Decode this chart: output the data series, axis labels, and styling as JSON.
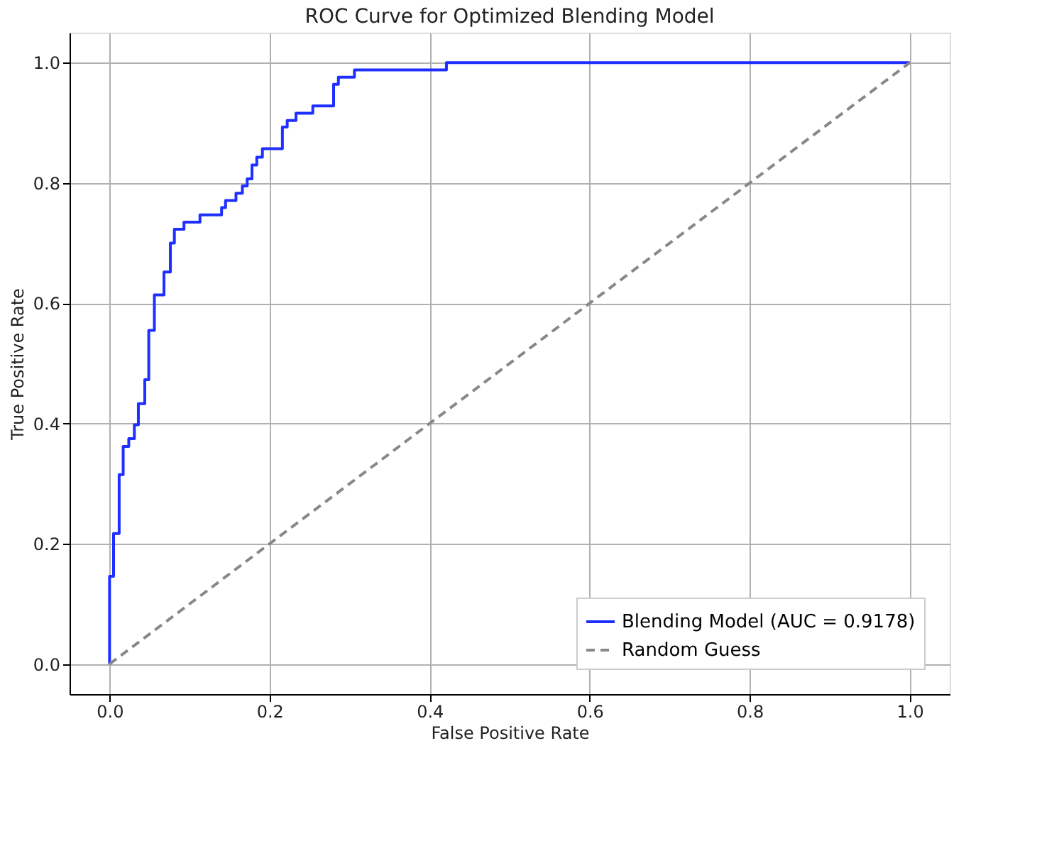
{
  "chart_data": {
    "type": "line",
    "title": "ROC Curve for Optimized Blending Model",
    "xlabel": "False Positive Rate",
    "ylabel": "True Positive Rate",
    "xlim": [
      -0.05,
      1.05
    ],
    "ylim": [
      -0.05,
      1.05
    ],
    "xticks": [
      {
        "value": 0,
        "label": "0.0"
      },
      0.2,
      0.4,
      0.6,
      0.8,
      {
        "value": 1,
        "label": "1.0"
      }
    ],
    "yticks": [
      {
        "value": 0,
        "label": "0.0"
      },
      0.2,
      0.4,
      0.6,
      0.8,
      {
        "value": 1,
        "label": "1.0"
      }
    ],
    "grid": true,
    "legend": "bottom right",
    "series": [
      {
        "name": "Blending Model (AUC = 0.9178)",
        "type": "step",
        "color": "#1f2fff",
        "line_style": "solid",
        "x": [
          0,
          0,
          0.005,
          0.012,
          0.017,
          0.024,
          0.031,
          0.036,
          0.044,
          0.049,
          0.056,
          0.068,
          0.076,
          0.081,
          0.093,
          0.113,
          0.14,
          0.145,
          0.158,
          0.166,
          0.172,
          0.178,
          0.184,
          0.191,
          0.216,
          0.222,
          0.233,
          0.254,
          0.28,
          0.286,
          0.306,
          0.421,
          1.0
        ],
        "values": [
          0,
          0.146,
          0.217,
          0.315,
          0.362,
          0.375,
          0.398,
          0.433,
          0.473,
          0.555,
          0.614,
          0.652,
          0.7,
          0.723,
          0.735,
          0.747,
          0.759,
          0.771,
          0.783,
          0.795,
          0.807,
          0.83,
          0.843,
          0.857,
          0.893,
          0.904,
          0.916,
          0.928,
          0.964,
          0.976,
          0.988,
          1.0,
          1.0
        ]
      },
      {
        "name": "Random Guess",
        "type": "line",
        "color": "#888888",
        "line_style": "dashed",
        "x": [
          0,
          1
        ],
        "values": [
          0,
          1
        ]
      }
    ]
  }
}
